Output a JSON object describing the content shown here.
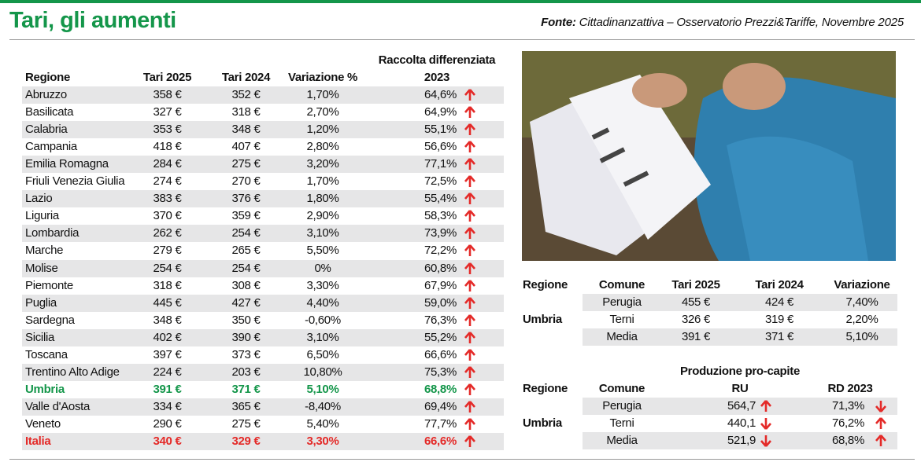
{
  "header": {
    "title": "Tari, gli aumenti",
    "source_label": "Fonte:",
    "source": "Cittadinanzattiva – Osservatorio Prezzi&Tariffe, Novembre 2025"
  },
  "main_table": {
    "headers": [
      "Regione",
      "Tari 2025",
      "Tari 2024",
      "Variazione %",
      "Raccolta differenziata 2023"
    ],
    "rows": [
      [
        "Abruzzo",
        "358 €",
        "352 €",
        "1,70%",
        "64,6%"
      ],
      [
        "Basilicata",
        "327 €",
        "318 €",
        "2,70%",
        "64,9%"
      ],
      [
        "Calabria",
        "353 €",
        "348 €",
        "1,20%",
        "55,1%"
      ],
      [
        "Campania",
        "418 €",
        "407 €",
        "2,80%",
        "56,6%"
      ],
      [
        "Emilia Romagna",
        "284 €",
        "275 €",
        "3,20%",
        "77,1%"
      ],
      [
        "Friuli Venezia Giulia",
        "274 €",
        "270 €",
        "1,70%",
        "72,5%"
      ],
      [
        "Lazio",
        "383 €",
        "376 €",
        "1,80%",
        "55,4%"
      ],
      [
        "Liguria",
        "370 €",
        "359 €",
        "2,90%",
        "58,3%"
      ],
      [
        "Lombardia",
        "262 €",
        "254 €",
        "3,10%",
        "73,9%"
      ],
      [
        "Marche",
        "279 €",
        "265 €",
        "5,50%",
        "72,2%"
      ],
      [
        "Molise",
        "254 €",
        "254 €",
        "0%",
        "60,8%"
      ],
      [
        "Piemonte",
        "318 €",
        "308 €",
        "3,30%",
        "67,9%"
      ],
      [
        "Puglia",
        "445 €",
        "427 €",
        "4,40%",
        "59,0%"
      ],
      [
        "Sardegna",
        "348 €",
        "350 €",
        "-0,60%",
        "76,3%"
      ],
      [
        "Sicilia",
        "402 €",
        "390 €",
        "3,10%",
        "55,2%"
      ],
      [
        "Toscana",
        "397 €",
        "373 €",
        "6,50%",
        "66,6%"
      ],
      [
        "Trentino Alto Adige",
        "224 €",
        "203 €",
        "10,80%",
        "75,3%"
      ],
      [
        "Umbria",
        "391 €",
        "371 €",
        "5,10%",
        "68,8%"
      ],
      [
        "Valle d'Aosta",
        "334 €",
        "365 €",
        "-8,40%",
        "69,4%"
      ],
      [
        "Veneto",
        "290 €",
        "275 €",
        "5,40%",
        "77,7%"
      ],
      [
        "Italia",
        "340 €",
        "329 €",
        "3,30%",
        "66,6%"
      ]
    ]
  },
  "umbria_tari": {
    "headers": [
      "Regione",
      "Comune",
      "Tari 2025",
      "Tari 2024",
      "Variazione"
    ],
    "region": "Umbria",
    "rows": [
      [
        "Perugia",
        "455 €",
        "424 €",
        "7,40%"
      ],
      [
        "Terni",
        "326 €",
        "319 €",
        "2,20%"
      ],
      [
        "Media",
        "391 €",
        "371 €",
        "5,10%"
      ]
    ]
  },
  "umbria_rifiuti": {
    "headers": [
      "Regione",
      "Comune",
      "Produzione pro-capite RU",
      "RD 2023"
    ],
    "region": "Umbria",
    "rows": [
      {
        "comune": "Perugia",
        "ru": "564,7",
        "ru_trend": "up",
        "rd": "71,3%",
        "rd_trend": "down"
      },
      {
        "comune": "Terni",
        "ru": "440,1",
        "ru_trend": "down",
        "rd": "76,2%",
        "rd_trend": "up"
      },
      {
        "comune": "Media",
        "ru": "521,9",
        "ru_trend": "down",
        "rd": "68,8%",
        "rd_trend": "up"
      }
    ]
  }
}
